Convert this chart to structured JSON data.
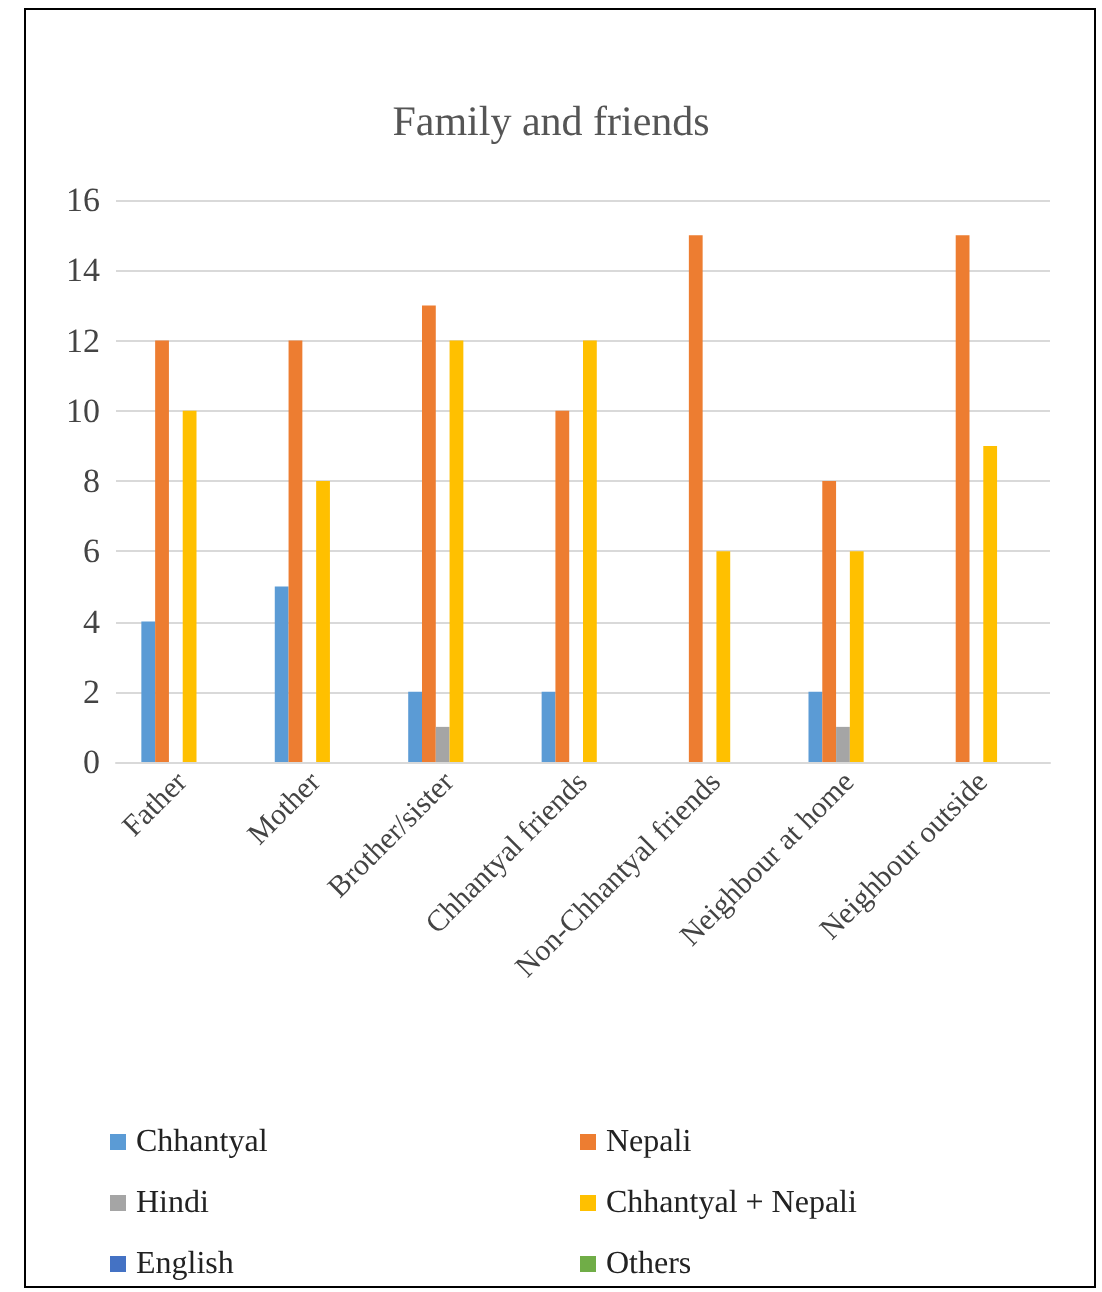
{
  "chart_data": {
    "type": "bar",
    "title": "Family and friends",
    "categories": [
      "Father",
      "Mother",
      "Brother/sister",
      "Chhantyal friends",
      "Non-Chhantyal friends",
      "Neighbour at home",
      "Neighbour outside"
    ],
    "series": [
      {
        "name": "Chhantyal",
        "color": "#5b9bd5",
        "values": [
          4,
          5,
          2,
          2,
          0,
          2,
          0
        ]
      },
      {
        "name": "Nepali",
        "color": "#ed7d31",
        "values": [
          12,
          12,
          13,
          10,
          15,
          8,
          15
        ]
      },
      {
        "name": "Hindi",
        "color": "#a5a5a5",
        "values": [
          0,
          0,
          1,
          0,
          0,
          1,
          0
        ]
      },
      {
        "name": "Chhantyal + Nepali",
        "color": "#ffc000",
        "values": [
          10,
          8,
          12,
          12,
          6,
          6,
          9
        ]
      },
      {
        "name": "English",
        "color": "#4472c4",
        "values": [
          0,
          0,
          0,
          0,
          0,
          0,
          0
        ]
      },
      {
        "name": "Others",
        "color": "#70ad47",
        "values": [
          0,
          0,
          0,
          0,
          0,
          0,
          0
        ]
      }
    ],
    "ylim": [
      0,
      16
    ],
    "yticks": [
      0,
      2,
      4,
      6,
      8,
      10,
      12,
      14,
      16
    ],
    "grid": "y",
    "legend": "bottom"
  }
}
